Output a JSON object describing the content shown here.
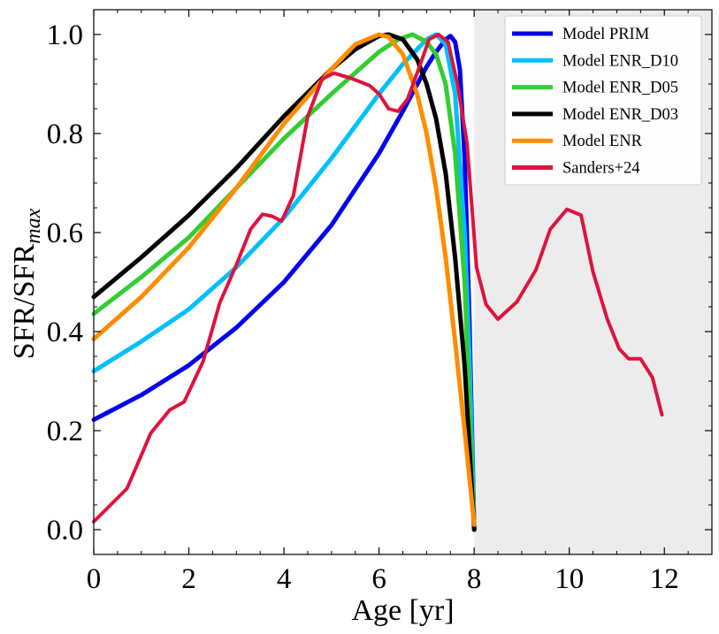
{
  "chart_data": {
    "type": "line",
    "title": "",
    "xlabel": "Age [yr]",
    "ylabel_main": "SFR/SFR",
    "ylabel_sub": "max",
    "xlim": [
      0,
      13
    ],
    "ylim": [
      -0.05,
      1.05
    ],
    "xticks": [
      0,
      2,
      4,
      6,
      8,
      10,
      12
    ],
    "xtick_labels": [
      "0",
      "2",
      "4",
      "6",
      "8",
      "10",
      "12"
    ],
    "yticks": [
      0.0,
      0.2,
      0.4,
      0.6,
      0.8,
      1.0
    ],
    "ytick_labels": [
      "0.0",
      "0.2",
      "0.4",
      "0.6",
      "0.8",
      "1.0"
    ],
    "shaded_region": {
      "x": [
        8,
        13
      ],
      "color": "#ececec"
    },
    "legend_position": "top-right",
    "series": [
      {
        "name": "Model PRIM",
        "color": "#0000ee",
        "x": [
          0,
          1,
          2,
          3,
          4,
          5,
          6,
          6.5,
          7,
          7.2,
          7.4,
          7.5,
          7.6,
          7.7,
          7.8,
          7.9,
          8.0
        ],
        "y": [
          0.222,
          0.272,
          0.332,
          0.408,
          0.5,
          0.615,
          0.76,
          0.845,
          0.935,
          0.965,
          0.99,
          0.997,
          0.985,
          0.93,
          0.75,
          0.42,
          0.0
        ]
      },
      {
        "name": "Model ENR_D10",
        "color": "#00bfff",
        "x": [
          0,
          1,
          2,
          3,
          4,
          5,
          6,
          6.5,
          7,
          7.2,
          7.4,
          7.6,
          7.8,
          7.9,
          8.0
        ],
        "y": [
          0.32,
          0.38,
          0.445,
          0.53,
          0.63,
          0.75,
          0.88,
          0.94,
          0.99,
          1.0,
          0.98,
          0.88,
          0.6,
          0.35,
          0.0
        ]
      },
      {
        "name": "Model ENR_D05",
        "color": "#33cc33",
        "x": [
          0,
          1,
          2,
          3,
          4,
          5,
          6,
          6.4,
          6.7,
          7.0,
          7.2,
          7.4,
          7.6,
          7.8,
          8.0
        ],
        "y": [
          0.436,
          0.51,
          0.59,
          0.69,
          0.79,
          0.88,
          0.965,
          0.99,
          1.0,
          0.985,
          0.96,
          0.9,
          0.76,
          0.5,
          0.0
        ]
      },
      {
        "name": "Model ENR_D03",
        "color": "#000000",
        "x": [
          0,
          1,
          2,
          3,
          4,
          5,
          5.5,
          6,
          6.2,
          6.5,
          6.8,
          7.0,
          7.2,
          7.4,
          7.6,
          7.8,
          8.0
        ],
        "y": [
          0.47,
          0.55,
          0.635,
          0.73,
          0.835,
          0.93,
          0.97,
          0.997,
          1.0,
          0.99,
          0.95,
          0.9,
          0.83,
          0.72,
          0.55,
          0.33,
          0.0
        ]
      },
      {
        "name": "Model ENR",
        "color": "#ff8c00",
        "x": [
          0,
          1,
          2,
          3,
          4,
          5,
          5.5,
          6,
          6.2,
          6.5,
          6.8,
          7.0,
          7.2,
          7.4,
          7.6,
          7.8,
          8.0
        ],
        "y": [
          0.385,
          0.47,
          0.57,
          0.69,
          0.82,
          0.93,
          0.98,
          1.0,
          0.995,
          0.96,
          0.88,
          0.8,
          0.69,
          0.55,
          0.38,
          0.2,
          0.01
        ]
      },
      {
        "name": "Sanders+24",
        "color": "#dc143c",
        "x": [
          0,
          0.7,
          1.2,
          1.6,
          1.9,
          2.3,
          2.65,
          3.0,
          3.3,
          3.55,
          3.75,
          3.95,
          4.2,
          4.5,
          4.8,
          5.05,
          5.4,
          5.8,
          6.0,
          6.2,
          6.4,
          6.6,
          6.85,
          7.05,
          7.25,
          7.45,
          7.65,
          7.85,
          8.05,
          8.25,
          8.5,
          8.9,
          9.3,
          9.6,
          9.95,
          10.25,
          10.5,
          10.8,
          11.05,
          11.25,
          11.5,
          11.75,
          11.95
        ],
        "y": [
          0.016,
          0.083,
          0.195,
          0.242,
          0.258,
          0.34,
          0.458,
          0.535,
          0.607,
          0.637,
          0.633,
          0.623,
          0.675,
          0.835,
          0.91,
          0.922,
          0.912,
          0.897,
          0.88,
          0.85,
          0.845,
          0.87,
          0.935,
          0.99,
          1.0,
          0.985,
          0.9,
          0.78,
          0.53,
          0.455,
          0.425,
          0.46,
          0.525,
          0.607,
          0.647,
          0.635,
          0.52,
          0.425,
          0.365,
          0.345,
          0.345,
          0.307,
          0.232
        ]
      }
    ]
  }
}
